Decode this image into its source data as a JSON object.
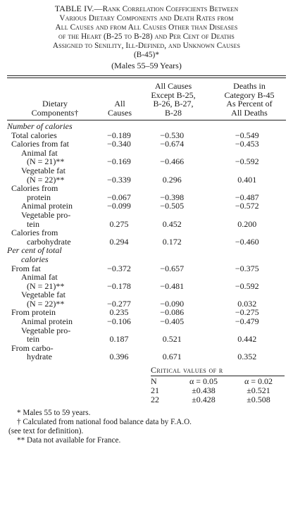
{
  "title": {
    "lead": "TABLE IV.—",
    "line1_rest": "Rank Correlation Coefficients Between",
    "line2": "Various Dietary Components and Death Rates from",
    "line3": "All Causes and from All Causes Other than Diseases",
    "line4": "of the Heart (B-25 to B-28) and Per Cent of Deaths",
    "line5": "Assigned to Senility, Ill-Defined, and Unknown Causes",
    "line6": "(B-45)*",
    "subtitle": "(Males 55–59 Years)"
  },
  "headers": {
    "col0": [
      "Dietary",
      "Components†"
    ],
    "col1": [
      "All",
      "Causes"
    ],
    "col2": [
      "All Causes",
      "Except B-25,",
      "B-26, B-27,",
      "B-28"
    ],
    "col3": [
      "Deaths in",
      "Category B-45",
      "As Percent of",
      "All Deaths"
    ]
  },
  "rows": [
    {
      "label": "Number of calories",
      "kind": "section",
      "v": [
        "",
        "",
        ""
      ]
    },
    {
      "label": "Total calories",
      "kind": "ind1",
      "v": [
        "−0.189",
        "−0.530",
        "−0.549"
      ]
    },
    {
      "label": "Calories from fat",
      "kind": "ind1",
      "v": [
        "−0.340",
        "−0.674",
        "−0.453"
      ]
    },
    {
      "label": "Animal fat",
      "kind": "ind2",
      "v": [
        "",
        "",
        ""
      ]
    },
    {
      "label": "(N = 21)**",
      "kind": "ind3",
      "v": [
        "−0.169",
        "−0.466",
        "−0.592"
      ]
    },
    {
      "label": "Vegetable fat",
      "kind": "ind2",
      "v": [
        "",
        "",
        ""
      ]
    },
    {
      "label": "(N = 22)**",
      "kind": "ind3",
      "v": [
        "−0.339",
        "0.296",
        "0.401"
      ]
    },
    {
      "label": "Calories from",
      "kind": "ind1",
      "v": [
        "",
        "",
        ""
      ]
    },
    {
      "label": "protein",
      "kind": "ind3",
      "v": [
        "−0.067",
        "−0.398",
        "−0.487"
      ]
    },
    {
      "label": "Animal protein",
      "kind": "ind2",
      "v": [
        "−0.099",
        "−0.505",
        "−0.572"
      ]
    },
    {
      "label": "Vegetable pro-",
      "kind": "ind2",
      "v": [
        "",
        "",
        ""
      ]
    },
    {
      "label": "tein",
      "kind": "ind3",
      "v": [
        "0.275",
        "0.452",
        "0.200"
      ]
    },
    {
      "label": "Calories from",
      "kind": "ind1",
      "v": [
        "",
        "",
        ""
      ]
    },
    {
      "label": "carbohydrate",
      "kind": "ind3",
      "v": [
        "0.294",
        "0.172",
        "−0.460"
      ]
    },
    {
      "label": "Per cent of total",
      "kind": "section",
      "v": [
        "",
        "",
        ""
      ]
    },
    {
      "label": "calories",
      "kind": "section ind2",
      "v": [
        "",
        "",
        ""
      ]
    },
    {
      "label": "From fat",
      "kind": "ind1",
      "v": [
        "−0.372",
        "−0.657",
        "−0.375"
      ]
    },
    {
      "label": "Animal fat",
      "kind": "ind2",
      "v": [
        "",
        "",
        ""
      ]
    },
    {
      "label": "(N = 21)**",
      "kind": "ind3",
      "v": [
        "−0.178",
        "−0.481",
        "−0.592"
      ]
    },
    {
      "label": "Vegetable fat",
      "kind": "ind2",
      "v": [
        "",
        "",
        ""
      ]
    },
    {
      "label": "(N = 22)**",
      "kind": "ind3",
      "v": [
        "−0.277",
        "−0.090",
        "0.032"
      ]
    },
    {
      "label": "From protein",
      "kind": "ind1",
      "v": [
        "0.235",
        "−0.086",
        "−0.275"
      ]
    },
    {
      "label": "Animal protein",
      "kind": "ind2",
      "v": [
        "−0.106",
        "−0.405",
        "−0.479"
      ]
    },
    {
      "label": "Vegetable pro-",
      "kind": "ind2",
      "v": [
        "",
        "",
        ""
      ]
    },
    {
      "label": "tein",
      "kind": "ind3",
      "v": [
        "0.187",
        "0.521",
        "0.442"
      ]
    },
    {
      "label": "From carbo-",
      "kind": "ind1",
      "v": [
        "",
        "",
        ""
      ]
    },
    {
      "label": "hydrate",
      "kind": "ind3",
      "v": [
        "0.396",
        "0.671",
        "0.352"
      ]
    }
  ],
  "critical": {
    "title": "Critical values of r",
    "head": [
      "N",
      "α = 0.05",
      "α = 0.02"
    ],
    "rows": [
      [
        "21",
        "±0.438",
        "±0.521"
      ],
      [
        "22",
        "±0.428",
        "±0.508"
      ]
    ]
  },
  "footnotes": [
    "* Males 55 to 59 years.",
    "† Calculated from national food balance data by F.A.O.",
    "(see text for definition).",
    "** Data not available for France."
  ]
}
